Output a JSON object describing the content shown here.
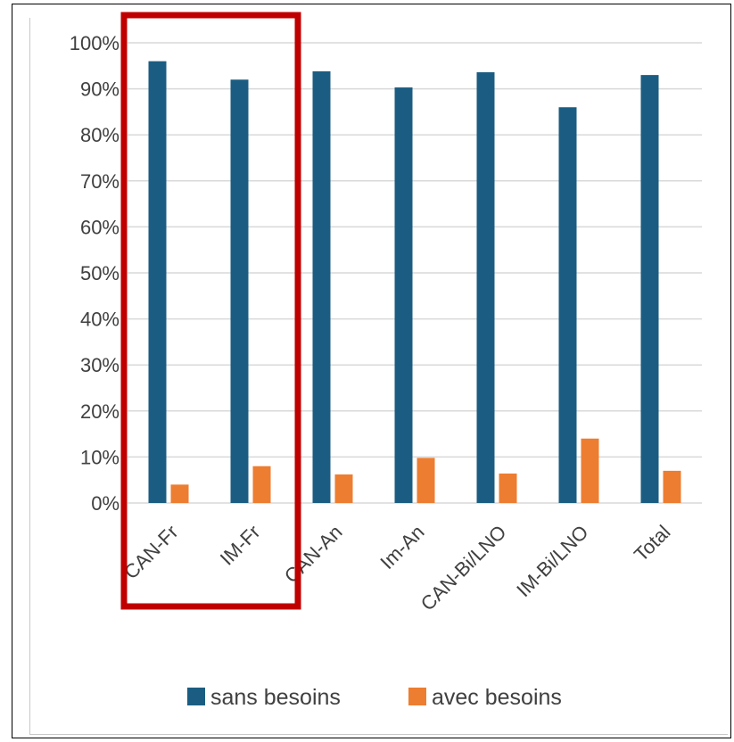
{
  "chart_data": {
    "type": "bar",
    "categories": [
      "CAN-Fr",
      "IM-Fr",
      "CAN-An",
      "Im-An",
      "CAN-Bi/LNO",
      "IM-Bi/LNO",
      "Total"
    ],
    "series": [
      {
        "name": "sans besoins",
        "color": "#1b5d82",
        "values": [
          96,
          92,
          93.8,
          90.3,
          93.6,
          86,
          93
        ]
      },
      {
        "name": "avec besoins",
        "color": "#ed7d31",
        "values": [
          4,
          8,
          6.2,
          9.8,
          6.4,
          14,
          7
        ]
      }
    ],
    "ylim": [
      0,
      100
    ],
    "yticks": [
      "0%",
      "10%",
      "20%",
      "30%",
      "40%",
      "50%",
      "60%",
      "70%",
      "80%",
      "90%",
      "100%"
    ],
    "title": "",
    "xlabel": "",
    "ylabel": "",
    "grid": true,
    "legend": "bottom",
    "highlight": {
      "categories": [
        "CAN-Fr",
        "IM-Fr"
      ],
      "color": "#c00000"
    }
  }
}
